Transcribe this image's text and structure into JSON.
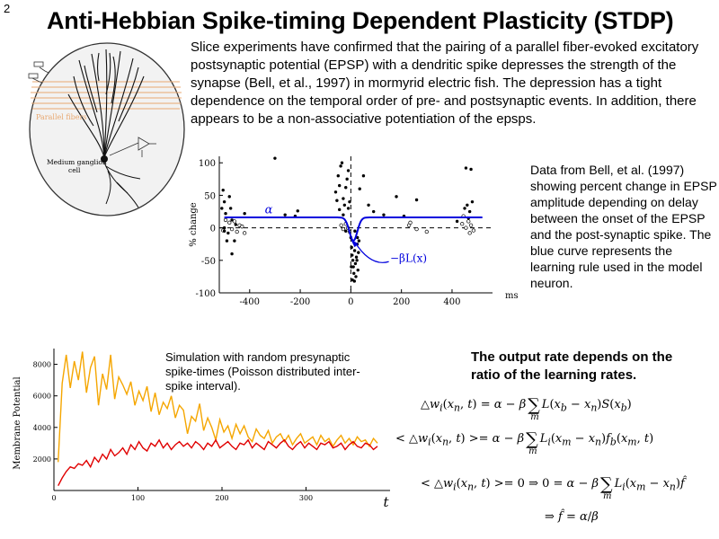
{
  "slide": {
    "number": "2",
    "title": "Anti-Hebbian Spike-timing Dependent Plasticity (STDP)"
  },
  "intro_text": "Slice experiments have confirmed that the pairing of a parallel fiber-evoked excitatory postsynaptic potential (EPSP) with a dendritic spike depresses the strength of the synapse (Bell, et al., 1997) in mormyrid electric fish.  The depression has a tight dependence on the temporal order of pre- and postsynaptic events. In addition, there appears to be a non-associative potentiation of the epsps.",
  "neuron_figure": {
    "parallel_fibers_label": "Parallel fibers",
    "cell_label_line1": "Medium ganglion",
    "cell_label_line2": "cell",
    "colors": {
      "fibers": "#e8a870",
      "outline": "#333333",
      "fill": "#f2f2f2"
    }
  },
  "stdp_caption": "Data from Bell, et al. (1997) showing percent change in EPSP amplitude depending on delay between the onset of the EPSP and the post-synaptic spike.  The blue curve represents the learning rule used in the model neuron.",
  "chart_data": [
    {
      "type": "scatter",
      "ylabel": "% change",
      "xunit": "ms",
      "xlim": [
        -520,
        560
      ],
      "ylim": [
        -100,
        110
      ],
      "xticks": [
        -400,
        -200,
        0,
        200,
        400
      ],
      "yticks": [
        100,
        50,
        0,
        -50,
        -100
      ],
      "learning_rule_color": "#0000dd",
      "annotations": {
        "alpha": "α",
        "rule": "−βL(x)"
      },
      "curve": {
        "baseline": 16,
        "min": -20,
        "min_at": 10
      },
      "filled_points": [
        [
          -500,
          40
        ],
        [
          -505,
          58
        ],
        [
          -510,
          30
        ],
        [
          -495,
          22
        ],
        [
          -480,
          48
        ],
        [
          -470,
          12
        ],
        [
          -485,
          -8
        ],
        [
          -500,
          0
        ],
        [
          -490,
          -20
        ],
        [
          -470,
          -40
        ],
        [
          -460,
          -20
        ],
        [
          -455,
          5
        ],
        [
          -500,
          -5
        ],
        [
          -475,
          30
        ],
        [
          -420,
          22
        ],
        [
          -300,
          107
        ],
        [
          -260,
          20
        ],
        [
          -210,
          26
        ],
        [
          -220,
          18
        ],
        [
          -60,
          55
        ],
        [
          -50,
          80
        ],
        [
          -45,
          65
        ],
        [
          -40,
          95
        ],
        [
          -35,
          100
        ],
        [
          -30,
          45
        ],
        [
          -25,
          35
        ],
        [
          -20,
          62
        ],
        [
          -15,
          75
        ],
        [
          -10,
          88
        ],
        [
          -5,
          40
        ],
        [
          -10,
          30
        ],
        [
          -30,
          20
        ],
        [
          -45,
          28
        ],
        [
          -55,
          42
        ],
        [
          -20,
          -5
        ],
        [
          0,
          -15
        ],
        [
          3,
          -30
        ],
        [
          5,
          -42
        ],
        [
          8,
          -50
        ],
        [
          10,
          -60
        ],
        [
          12,
          -70
        ],
        [
          15,
          -35
        ],
        [
          18,
          -55
        ],
        [
          20,
          -75
        ],
        [
          22,
          -45
        ],
        [
          25,
          -25
        ],
        [
          28,
          -65
        ],
        [
          30,
          -38
        ],
        [
          6,
          -80
        ],
        [
          14,
          -82
        ],
        [
          26,
          -15
        ],
        [
          32,
          -20
        ],
        [
          16,
          -5
        ],
        [
          2,
          -60
        ],
        [
          24,
          -50
        ],
        [
          35,
          60
        ],
        [
          50,
          80
        ],
        [
          70,
          35
        ],
        [
          90,
          25
        ],
        [
          130,
          20
        ],
        [
          180,
          48
        ],
        [
          210,
          18
        ],
        [
          260,
          43
        ],
        [
          420,
          10
        ],
        [
          455,
          92
        ],
        [
          475,
          90
        ],
        [
          460,
          35
        ],
        [
          470,
          25
        ],
        [
          480,
          40
        ],
        [
          465,
          15
        ],
        [
          450,
          30
        ]
      ],
      "open_points": [
        [
          -480,
          8
        ],
        [
          -470,
          -2
        ],
        [
          -460,
          10
        ],
        [
          -450,
          -6
        ],
        [
          -440,
          4
        ],
        [
          -495,
          12
        ],
        [
          -505,
          -4
        ],
        [
          -430,
          2
        ],
        [
          -420,
          -8
        ],
        [
          -30,
          -2
        ],
        [
          -20,
          6
        ],
        [
          -12,
          0
        ],
        [
          -38,
          4
        ],
        [
          -5,
          -6
        ],
        [
          230,
          4
        ],
        [
          235,
          8
        ],
        [
          260,
          -2
        ],
        [
          300,
          -6
        ],
        [
          440,
          6
        ],
        [
          455,
          0
        ],
        [
          465,
          10
        ],
        [
          475,
          4
        ],
        [
          485,
          -4
        ],
        [
          470,
          -8
        ],
        [
          445,
          18
        ]
      ]
    },
    {
      "type": "line",
      "ylabel": "Membrane Potential",
      "xlabel": "t",
      "xlim": [
        0,
        400
      ],
      "ylim": [
        0,
        9000
      ],
      "xticks": [
        0,
        100,
        200,
        300
      ],
      "yticks": [
        2000,
        4000,
        6000,
        8000
      ],
      "series": [
        {
          "color": "#f5a600",
          "role": "orange",
          "values": [
            1800,
            6800,
            8600,
            6500,
            8200,
            7000,
            8800,
            6200,
            7800,
            8500,
            5400,
            7400,
            6400,
            8600,
            5800,
            7200,
            6700,
            6100,
            6900,
            5400,
            6300,
            5700,
            6600,
            5000,
            6200,
            4800,
            5600,
            5200,
            6000,
            4600,
            5400,
            5100,
            3600,
            4700,
            4400,
            5500,
            3800,
            4600,
            4000,
            3200,
            4500,
            3700,
            4100,
            3300,
            4200,
            3600,
            4100,
            3400,
            3100,
            3900,
            3500,
            3300,
            3800,
            3000,
            3400,
            3600,
            3100,
            3500,
            2900,
            3300,
            3600,
            3000,
            3200,
            3400,
            2900,
            3500,
            3100,
            3300,
            2800,
            3200,
            3500,
            3000,
            3300,
            2900,
            3400,
            3100,
            3200,
            2800,
            3300,
            3000
          ]
        },
        {
          "color": "#e00000",
          "role": "red",
          "values": [
            300,
            800,
            1200,
            1500,
            1400,
            1700,
            1600,
            1900,
            1500,
            2100,
            1800,
            2300,
            2000,
            2600,
            2200,
            2400,
            2700,
            2300,
            2900,
            2600,
            3100,
            2700,
            2500,
            3000,
            2800,
            3200,
            2700,
            3000,
            2600,
            2900,
            3100,
            2800,
            3000,
            2700,
            3100,
            2900,
            2600,
            3000,
            2800,
            3200,
            2700,
            2900,
            3100,
            2800,
            2600,
            3000,
            2900,
            3200,
            2700,
            3000,
            2800,
            2600,
            3100,
            2900,
            2700,
            3000,
            3200,
            2800,
            2600,
            2900,
            3100,
            2700,
            3000,
            2800,
            2600,
            3000,
            2900,
            3100,
            2700,
            2800,
            3000,
            2600,
            2900,
            3100,
            2800,
            2700,
            3000,
            2900,
            2600,
            2800
          ]
        }
      ]
    }
  ],
  "simulation_caption": "Simulation with random presynaptic spike-times (Poisson distributed inter-spike interval).",
  "output_heading": "The output rate depends on the ratio of the learning rates."
}
